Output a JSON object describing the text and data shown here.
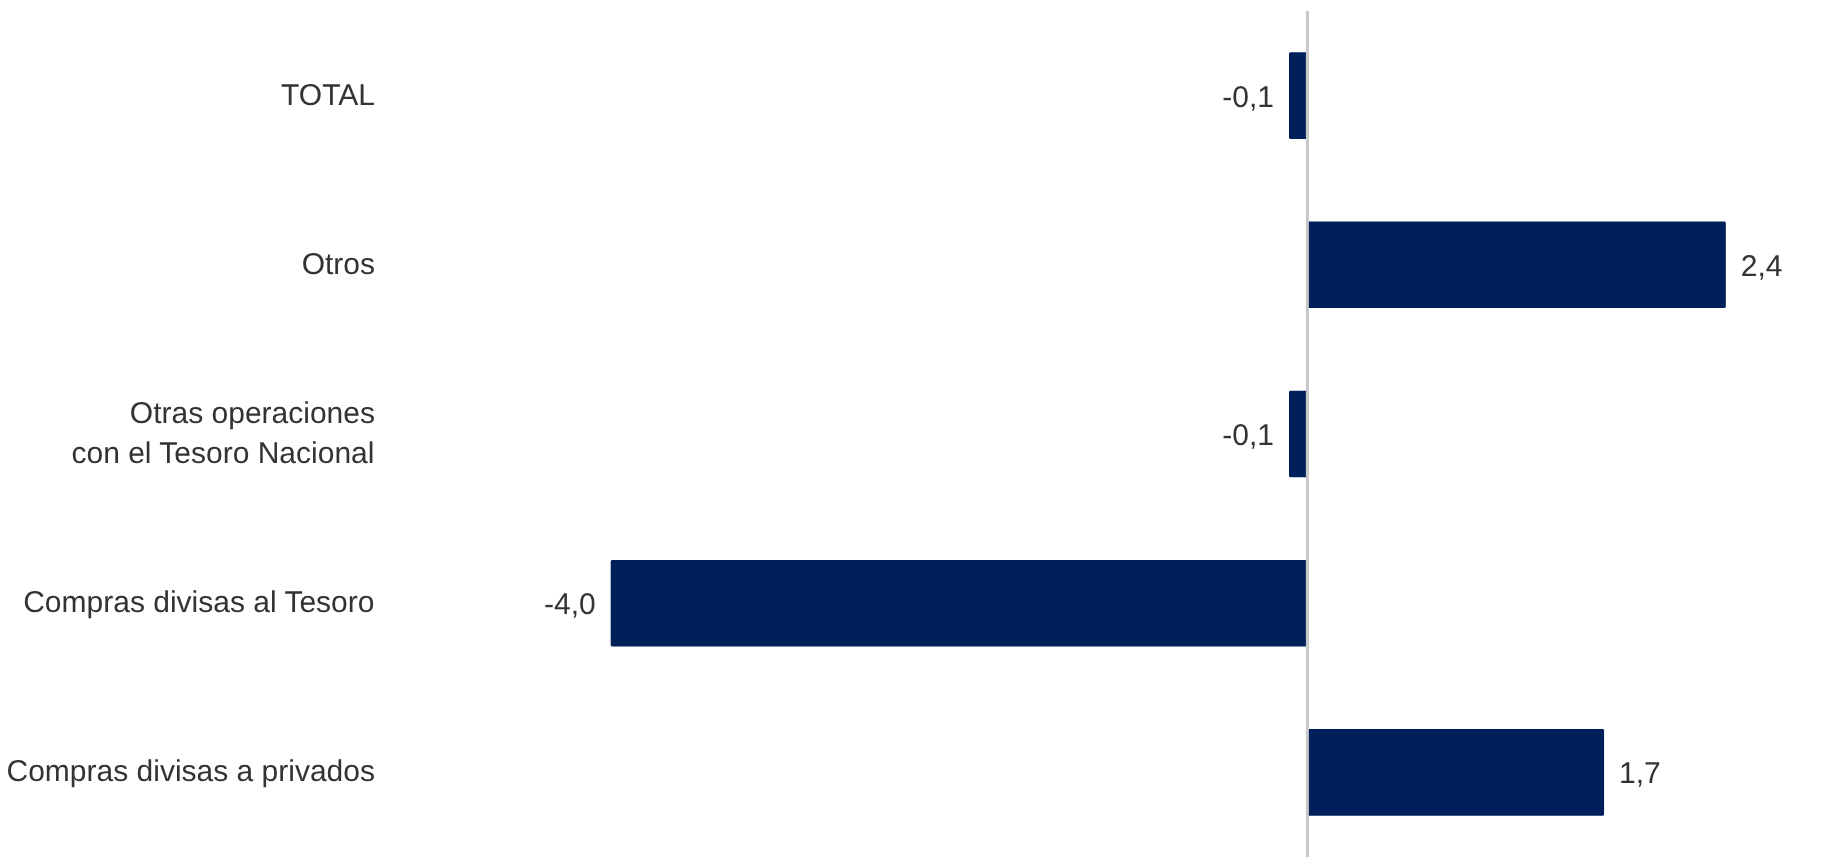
{
  "chart_data": {
    "type": "bar",
    "orientation": "horizontal",
    "categories": [
      "TOTAL",
      "Otros",
      "Otras operaciones\ncon el Tesoro Nacional",
      "Compras divisas al Tesoro",
      "Compras divisas a privados"
    ],
    "values": [
      -0.1,
      2.4,
      -0.1,
      -4.0,
      1.7
    ],
    "value_labels": [
      "-0,1",
      "2,4",
      "-0,1",
      "-4,0",
      "1,7"
    ],
    "color": "#00205b",
    "ref_lines": [
      {
        "axis": "x",
        "value": 0,
        "color": "#c8c8c8"
      }
    ],
    "grid": false,
    "tick_labels": "y"
  }
}
